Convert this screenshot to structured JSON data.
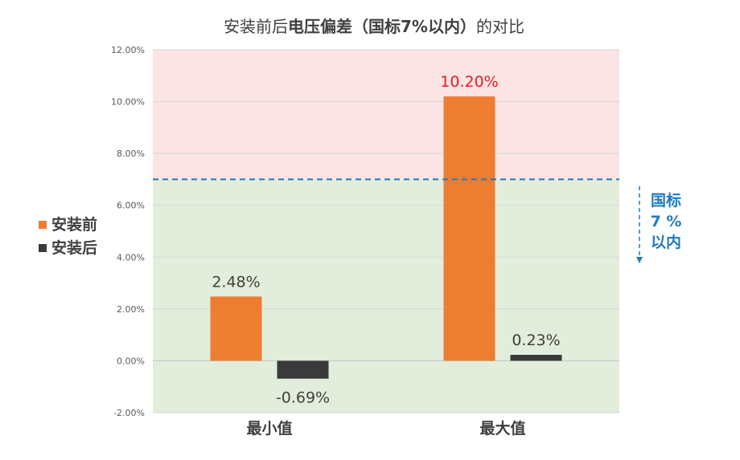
{
  "chart_data": {
    "type": "bar",
    "title_parts": [
      {
        "text": "安装前后",
        "bold": false
      },
      {
        "text": "电压偏差（国标7%以内）",
        "bold": true
      },
      {
        "text": "的对比",
        "bold": false
      }
    ],
    "categories": [
      "最小值",
      "最大值"
    ],
    "series": [
      {
        "name": "安装前",
        "values": [
          2.48,
          10.2
        ],
        "color": "#ED7D31"
      },
      {
        "name": "安装后",
        "values": [
          -0.69,
          0.23
        ],
        "color": "#3A3A3A"
      }
    ],
    "data_labels": [
      [
        "2.48%",
        "10.20%"
      ],
      [
        "-0.69%",
        "0.23%"
      ]
    ],
    "highlight_label_color": "#E02020",
    "label_color": "#404040",
    "ylim": [
      -2,
      12
    ],
    "yticks": [
      -2,
      0,
      2,
      4,
      6,
      8,
      10,
      12
    ],
    "ytick_labels": [
      "-2.00%",
      "0.00%",
      "2.00%",
      "4.00%",
      "6.00%",
      "8.00%",
      "10.00%",
      "12.00%"
    ],
    "threshold": 7,
    "threshold_color": "#1F7BC0",
    "threshold_label": [
      "国标",
      "7 %",
      "以内"
    ],
    "band_above_color": "#FCE4E4",
    "band_below_color": "#E3EDDB",
    "legend_placement": "left"
  }
}
